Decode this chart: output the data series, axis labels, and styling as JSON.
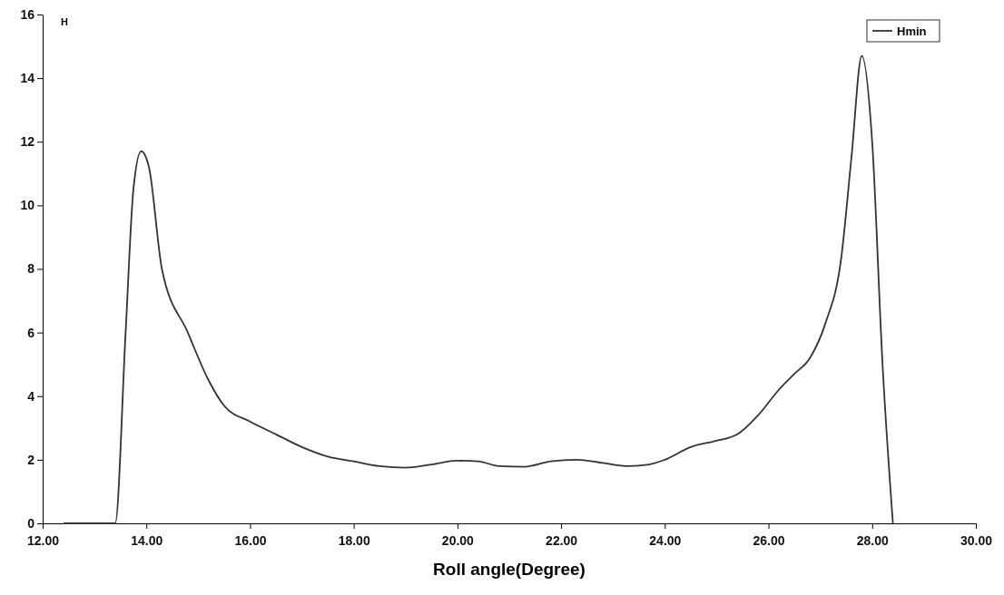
{
  "chart_data": {
    "type": "line",
    "xlabel": "Roll angle(Degree)",
    "ylabel": "H",
    "xlim": [
      12,
      30
    ],
    "xticks": [
      {
        "value": 12,
        "label": "12.00"
      },
      {
        "value": 14,
        "label": "14.00"
      },
      {
        "value": 16,
        "label": "16.00"
      },
      {
        "value": 18,
        "label": "18.00"
      },
      {
        "value": 20,
        "label": "20.00"
      },
      {
        "value": 22,
        "label": "22.00"
      },
      {
        "value": 24,
        "label": "24.00"
      },
      {
        "value": 26,
        "label": "26.00"
      },
      {
        "value": 28,
        "label": "28.00"
      },
      {
        "value": 30,
        "label": "30.00"
      }
    ],
    "ylim": [
      0,
      16
    ],
    "yticks": [
      0,
      2,
      4,
      6,
      8,
      10,
      12,
      14,
      16
    ],
    "x": [
      12.4,
      13.4,
      13.6,
      13.75,
      13.9,
      14.05,
      14.3,
      14.8,
      15.2,
      15.5,
      16.0,
      16.5,
      17.0,
      17.5,
      18.0,
      18.5,
      19.0,
      19.5,
      20.0,
      20.4,
      20.8,
      21.3,
      21.8,
      22.3,
      22.8,
      23.3,
      23.7,
      24.0,
      24.5,
      25.0,
      25.4,
      25.8,
      26.2,
      26.5,
      26.8,
      27.1,
      27.4,
      27.6,
      27.8,
      28.0,
      28.2,
      28.4
    ],
    "series": [
      {
        "name": "Hmin",
        "color": "#333333",
        "values": [
          0,
          0,
          6,
          10.5,
          11.7,
          11.2,
          8,
          6,
          4.5,
          3.7,
          3.2,
          2.8,
          2.4,
          2.1,
          1.95,
          1.8,
          1.75,
          1.85,
          1.97,
          1.95,
          1.8,
          1.78,
          1.95,
          2.0,
          1.9,
          1.8,
          1.85,
          2.0,
          2.4,
          2.6,
          2.8,
          3.4,
          4.2,
          4.7,
          5.2,
          6.3,
          8.3,
          11.5,
          14.7,
          12,
          5,
          0
        ]
      }
    ],
    "legend": "top right",
    "grid": false,
    "marker": "none",
    "line_style": "solid"
  }
}
